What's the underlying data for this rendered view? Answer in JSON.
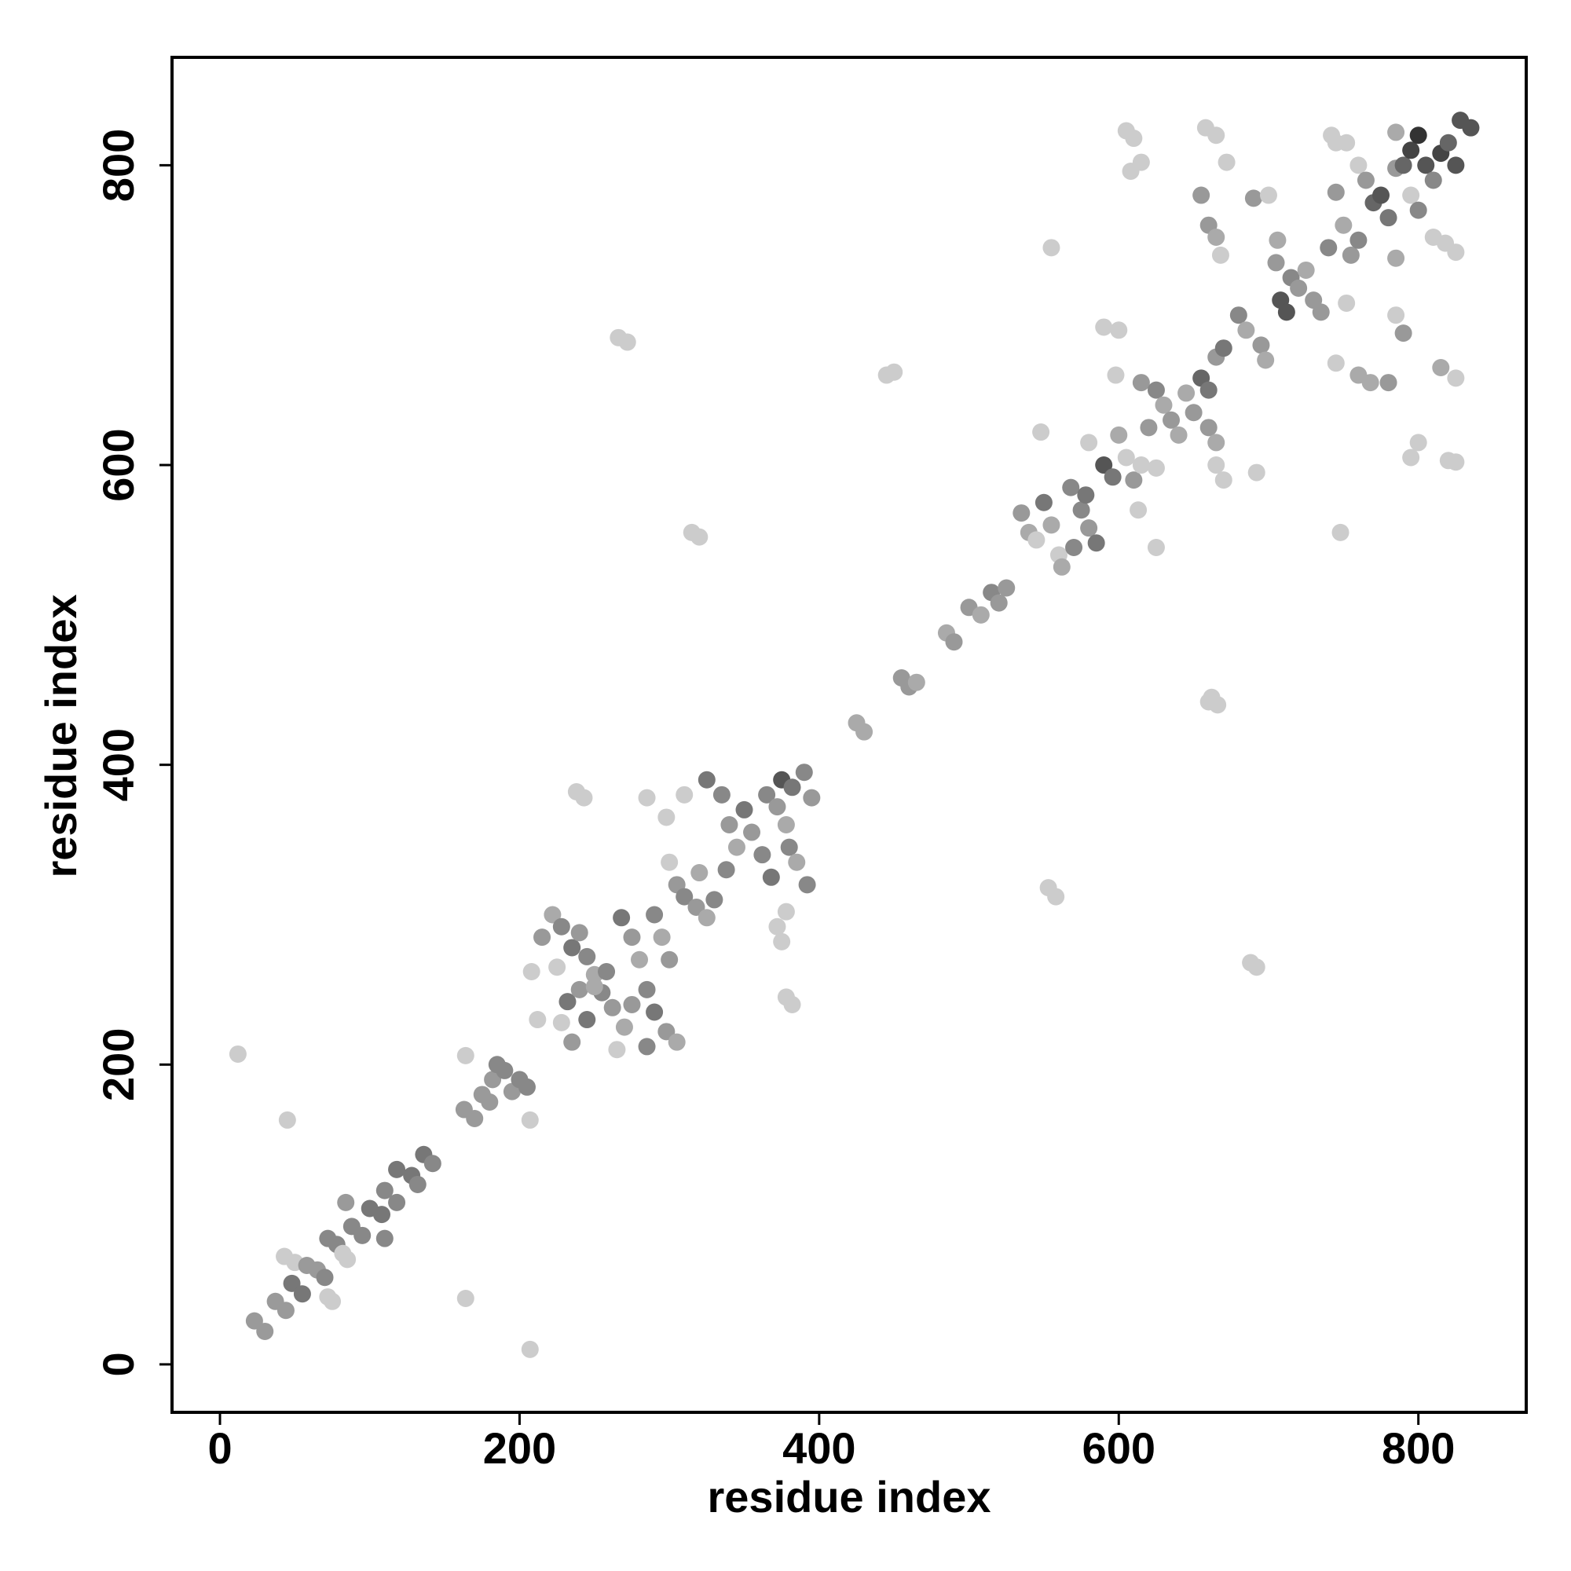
{
  "chart_data": {
    "type": "scatter",
    "xlabel": "residue index",
    "ylabel": "residue index",
    "xlim": [
      -32,
      872
    ],
    "ylim": [
      -32,
      872
    ],
    "xticks": [
      0,
      200,
      400,
      600,
      800
    ],
    "yticks": [
      0,
      200,
      400,
      600,
      800
    ],
    "x": [
      12,
      45,
      23,
      30,
      37,
      44,
      48,
      55,
      43,
      50,
      58,
      65,
      70,
      72,
      75,
      72,
      78,
      82,
      85,
      84,
      88,
      95,
      100,
      108,
      110,
      110,
      118,
      118,
      128,
      132,
      136,
      142,
      164,
      164,
      207,
      207,
      163,
      170,
      175,
      180,
      182,
      185,
      190,
      195,
      200,
      205,
      208,
      212,
      215,
      222,
      228,
      235,
      225,
      240,
      245,
      250,
      232,
      240,
      255,
      262,
      228,
      235,
      245,
      268,
      275,
      280,
      290,
      295,
      300,
      285,
      290,
      298,
      305,
      285,
      265,
      270,
      275,
      258,
      250,
      238,
      243,
      266,
      272,
      315,
      320,
      300,
      305,
      310,
      318,
      325,
      330,
      320,
      325,
      335,
      340,
      345,
      338,
      350,
      355,
      362,
      368,
      365,
      372,
      378,
      380,
      385,
      375,
      382,
      390,
      395,
      392,
      378,
      372,
      375,
      378,
      382,
      298,
      285,
      310,
      425,
      430,
      445,
      450,
      455,
      460,
      465,
      485,
      490,
      500,
      508,
      515,
      520,
      525,
      548,
      553,
      558,
      555,
      535,
      540,
      545,
      550,
      555,
      560,
      562,
      570,
      575,
      580,
      585,
      568,
      578,
      580,
      590,
      596,
      600,
      605,
      610,
      615,
      620,
      625,
      613,
      625,
      615,
      625,
      630,
      635,
      640,
      645,
      650,
      655,
      660,
      665,
      660,
      665,
      670,
      662,
      666,
      660,
      590,
      600,
      598,
      605,
      610,
      615,
      608,
      655,
      660,
      665,
      668,
      658,
      665,
      672,
      690,
      700,
      665,
      670,
      680,
      685,
      695,
      698,
      705,
      708,
      712,
      715,
      720,
      725,
      730,
      735,
      706,
      692,
      688,
      692,
      740,
      745,
      750,
      755,
      760,
      742,
      745,
      752,
      760,
      765,
      770,
      775,
      780,
      785,
      790,
      795,
      800,
      805,
      810,
      815,
      820,
      825,
      828,
      835,
      785,
      795,
      800,
      810,
      818,
      825,
      760,
      768,
      780,
      785,
      790,
      815,
      825,
      800,
      820,
      825,
      795,
      748,
      752,
      745,
      785
    ],
    "values": [
      207,
      163,
      29,
      22,
      42,
      36,
      54,
      47,
      72,
      68,
      66,
      63,
      58,
      45,
      42,
      84,
      80,
      74,
      70,
      108,
      92,
      86,
      104,
      100,
      116,
      84,
      108,
      130,
      126,
      120,
      140,
      134,
      206,
      44,
      10,
      163,
      170,
      164,
      180,
      175,
      190,
      200,
      196,
      182,
      190,
      185,
      262,
      230,
      285,
      300,
      292,
      278,
      265,
      288,
      272,
      260,
      242,
      250,
      248,
      238,
      228,
      215,
      230,
      298,
      285,
      270,
      300,
      285,
      270,
      250,
      235,
      222,
      215,
      212,
      210,
      225,
      240,
      262,
      252,
      382,
      378,
      685,
      682,
      555,
      552,
      335,
      320,
      312,
      305,
      298,
      310,
      328,
      390,
      380,
      360,
      345,
      330,
      370,
      355,
      340,
      325,
      380,
      372,
      360,
      345,
      335,
      390,
      385,
      395,
      378,
      320,
      302,
      292,
      282,
      245,
      240,
      365,
      378,
      380,
      428,
      422,
      660,
      662,
      458,
      452,
      455,
      488,
      482,
      505,
      500,
      515,
      508,
      518,
      622,
      318,
      312,
      745,
      568,
      555,
      550,
      575,
      560,
      540,
      532,
      545,
      570,
      558,
      548,
      585,
      580,
      615,
      600,
      592,
      620,
      605,
      590,
      600,
      625,
      598,
      570,
      545,
      655,
      650,
      640,
      630,
      620,
      648,
      635,
      658,
      625,
      615,
      650,
      600,
      590,
      445,
      440,
      442,
      692,
      690,
      660,
      823,
      818,
      802,
      796,
      780,
      760,
      752,
      740,
      825,
      820,
      802,
      778,
      780,
      672,
      678,
      700,
      690,
      680,
      670,
      735,
      710,
      702,
      725,
      718,
      730,
      710,
      702,
      750,
      595,
      268,
      265,
      745,
      782,
      760,
      740,
      750,
      820,
      815,
      815,
      800,
      790,
      775,
      780,
      765,
      798,
      800,
      810,
      820,
      800,
      790,
      808,
      815,
      800,
      830,
      825,
      822,
      780,
      770,
      752,
      748,
      742,
      660,
      655,
      655,
      700,
      688,
      665,
      658,
      615,
      603,
      602,
      605,
      555,
      708,
      668,
      738
    ],
    "colors": [
      "#cccccc",
      "#cccccc",
      "#9a9a9a",
      "#9a9a9a",
      "#9a9a9a",
      "#9a9a9a",
      "#777777",
      "#777777",
      "#cccccc",
      "#cccccc",
      "#9a9a9a",
      "#9a9a9a",
      "#888888",
      "#cccccc",
      "#cccccc",
      "#888888",
      "#888888",
      "#cccccc",
      "#cccccc",
      "#9a9a9a",
      "#888888",
      "#888888",
      "#777777",
      "#777777",
      "#888888",
      "#888888",
      "#888888",
      "#777777",
      "#777777",
      "#888888",
      "#777777",
      "#888888",
      "#cccccc",
      "#cccccc",
      "#cccccc",
      "#cccccc",
      "#9a9a9a",
      "#9a9a9a",
      "#9a9a9a",
      "#9a9a9a",
      "#9a9a9a",
      "#888888",
      "#888888",
      "#9a9a9a",
      "#888888",
      "#888888",
      "#cccccc",
      "#cccccc",
      "#999999",
      "#aaaaaa",
      "#888888",
      "#777777",
      "#cccccc",
      "#999999",
      "#888888",
      "#aaaaaa",
      "#777777",
      "#999999",
      "#888888",
      "#999999",
      "#cccccc",
      "#9a9a9a",
      "#777777",
      "#777777",
      "#999999",
      "#aaaaaa",
      "#888888",
      "#aaaaaa",
      "#999999",
      "#888888",
      "#777777",
      "#999999",
      "#aaaaaa",
      "#888888",
      "#cccccc",
      "#aaaaaa",
      "#999999",
      "#888888",
      "#aaaaaa",
      "#cccccc",
      "#cccccc",
      "#cccccc",
      "#cccccc",
      "#cccccc",
      "#cccccc",
      "#cccccc",
      "#999999",
      "#888888",
      "#999999",
      "#aaaaaa",
      "#888888",
      "#aaaaaa",
      "#777777",
      "#888888",
      "#999999",
      "#aaaaaa",
      "#888888",
      "#777777",
      "#999999",
      "#888888",
      "#777777",
      "#888888",
      "#999999",
      "#aaaaaa",
      "#888888",
      "#aaaaaa",
      "#555555",
      "#777777",
      "#888888",
      "#999999",
      "#888888",
      "#cccccc",
      "#cccccc",
      "#cccccc",
      "#cccccc",
      "#cccccc",
      "#cccccc",
      "#cccccc",
      "#cccccc",
      "#aaaaaa",
      "#aaaaaa",
      "#cccccc",
      "#cccccc",
      "#999999",
      "#999999",
      "#aaaaaa",
      "#aaaaaa",
      "#999999",
      "#999999",
      "#aaaaaa",
      "#888888",
      "#999999",
      "#999999",
      "#cccccc",
      "#cccccc",
      "#cccccc",
      "#cccccc",
      "#999999",
      "#aaaaaa",
      "#cccccc",
      "#777777",
      "#aaaaaa",
      "#cccccc",
      "#aaaaaa",
      "#888888",
      "#888888",
      "#999999",
      "#777777",
      "#888888",
      "#777777",
      "#cccccc",
      "#555555",
      "#777777",
      "#aaaaaa",
      "#cccccc",
      "#999999",
      "#cccccc",
      "#999999",
      "#cccccc",
      "#cccccc",
      "#cccccc",
      "#999999",
      "#888888",
      "#aaaaaa",
      "#999999",
      "#aaaaaa",
      "#aaaaaa",
      "#999999",
      "#666666",
      "#999999",
      "#aaaaaa",
      "#777777",
      "#cccccc",
      "#cccccc",
      "#cccccc",
      "#cccccc",
      "#cccccc",
      "#cccccc",
      "#cccccc",
      "#cccccc",
      "#cccccc",
      "#cccccc",
      "#cccccc",
      "#cccccc",
      "#999999",
      "#999999",
      "#aaaaaa",
      "#cccccc",
      "#cccccc",
      "#cccccc",
      "#cccccc",
      "#999999",
      "#cccccc",
      "#999999",
      "#777777",
      "#888888",
      "#aaaaaa",
      "#999999",
      "#aaaaaa",
      "#999999",
      "#555555",
      "#555555",
      "#888888",
      "#999999",
      "#aaaaaa",
      "#999999",
      "#999999",
      "#aaaaaa",
      "#cccccc",
      "#cccccc",
      "#cccccc",
      "#888888",
      "#999999",
      "#aaaaaa",
      "#999999",
      "#888888",
      "#cccccc",
      "#cccccc",
      "#cccccc",
      "#cccccc",
      "#999999",
      "#666666",
      "#555555",
      "#777777",
      "#999999",
      "#666666",
      "#444444",
      "#333333",
      "#555555",
      "#888888",
      "#444444",
      "#666666",
      "#555555",
      "#555555",
      "#555555",
      "#aaaaaa",
      "#cccccc",
      "#888888",
      "#cccccc",
      "#cccccc",
      "#cccccc",
      "#aaaaaa",
      "#aaaaaa",
      "#999999",
      "#cccccc",
      "#999999",
      "#aaaaaa",
      "#cccccc",
      "#cccccc",
      "#cccccc",
      "#cccccc",
      "#cccccc",
      "#cccccc",
      "#cccccc",
      "#cccccc",
      "#aaaaaa"
    ]
  }
}
